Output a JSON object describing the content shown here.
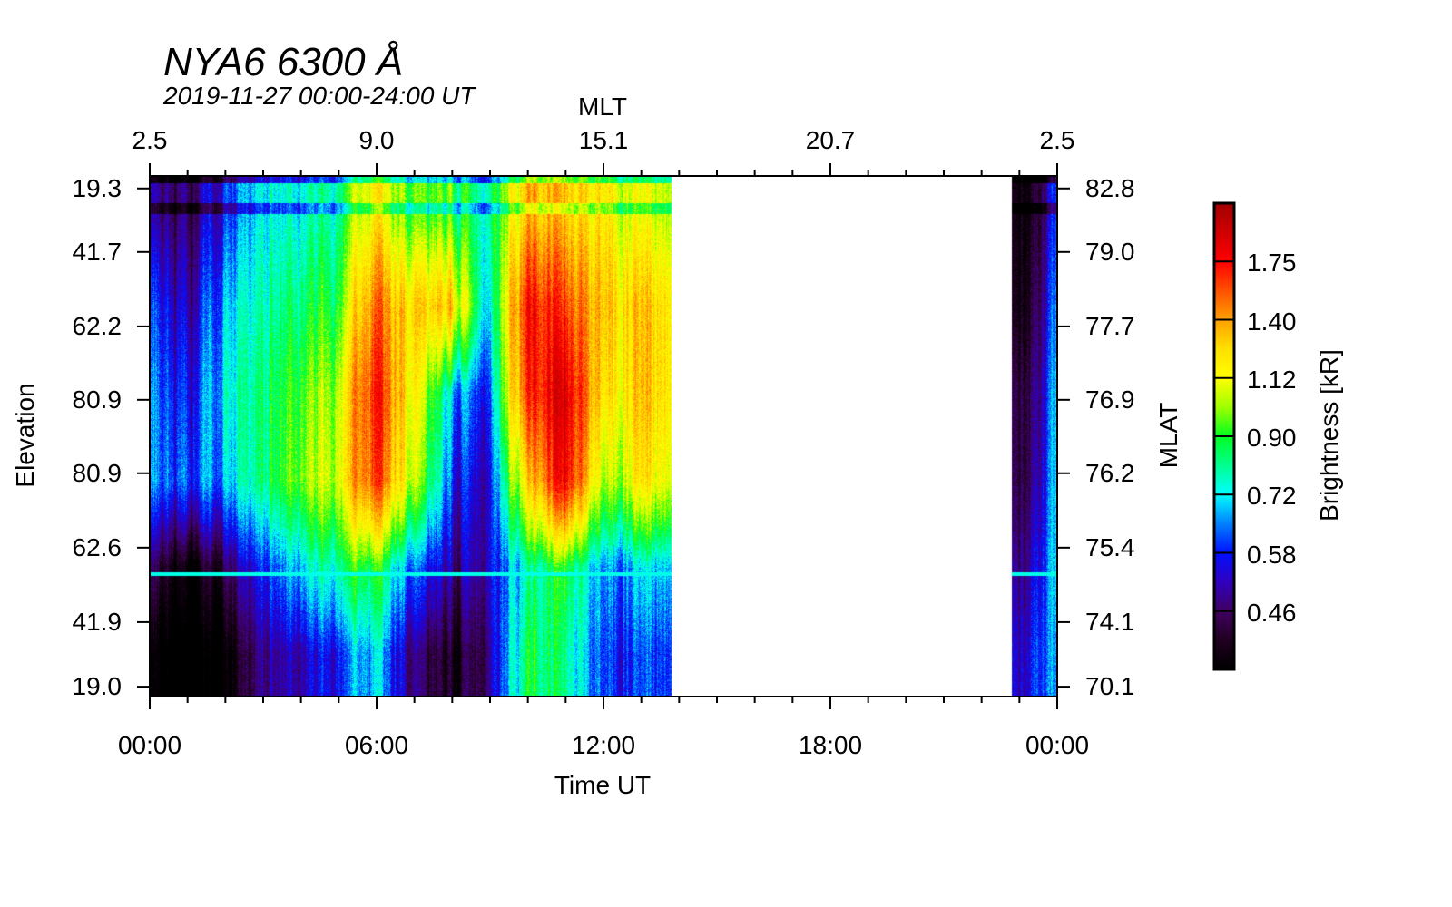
{
  "chart_data": {
    "type": "heatmap",
    "title": "NYA6 6300 Å",
    "subtitle": "2019-11-27 00:00-24:00 UT",
    "xlabel": "Time UT",
    "x_top_label": "MLT",
    "ylabel_left": "Elevation",
    "ylabel_right": "MLAT",
    "colorbar_label": "Brightness [kR]",
    "xlim_hours": [
      0,
      24
    ],
    "x_ticks": [
      "00:00",
      "06:00",
      "12:00",
      "18:00",
      "00:00"
    ],
    "mlt_ticks": [
      "2.5",
      "9.0",
      "15.1",
      "20.7",
      "2.5"
    ],
    "elevation_ticks": [
      "19.3",
      "41.7",
      "62.2",
      "80.9",
      "80.9",
      "62.6",
      "41.9",
      "19.0"
    ],
    "mlat_ticks": [
      "82.8",
      "79.0",
      "77.7",
      "76.9",
      "76.2",
      "75.4",
      "74.1",
      "70.1"
    ],
    "colorbar_ticks": [
      "1.75",
      "1.40",
      "1.12",
      "0.90",
      "0.72",
      "0.58",
      "0.46"
    ],
    "colorbar_range_kR": [
      0.36,
      2.2
    ],
    "data_intervals_hours": [
      [
        0,
        13.8
      ],
      [
        22.8,
        24
      ]
    ],
    "bands_note_order": "north-to-south elevation bands",
    "grid_hours": [
      0,
      1,
      2,
      3,
      4,
      5,
      6,
      7,
      8,
      9,
      10,
      11,
      12,
      13,
      13.8,
      22.8,
      23.5,
      24
    ],
    "brightness_kR": [
      [
        0.5,
        0.6,
        0.65,
        0.65,
        0.45,
        0.35
      ],
      [
        0.45,
        0.5,
        0.55,
        0.6,
        0.35,
        0.3
      ],
      [
        0.6,
        0.7,
        0.75,
        0.7,
        0.45,
        0.35
      ],
      [
        0.75,
        0.8,
        0.85,
        0.85,
        0.6,
        0.5
      ],
      [
        0.8,
        0.9,
        1.0,
        1.05,
        0.75,
        0.55
      ],
      [
        0.85,
        0.95,
        1.1,
        1.15,
        0.85,
        0.6
      ],
      [
        1.2,
        1.5,
        1.7,
        1.6,
        0.9,
        0.7
      ],
      [
        0.9,
        1.2,
        1.1,
        1.0,
        0.6,
        0.45
      ],
      [
        0.95,
        1.3,
        0.7,
        0.6,
        0.5,
        0.4
      ],
      [
        0.8,
        0.7,
        0.6,
        0.55,
        0.55,
        0.5
      ],
      [
        1.4,
        1.8,
        1.7,
        1.3,
        0.8,
        0.9
      ],
      [
        1.3,
        1.6,
        1.9,
        1.8,
        0.9,
        0.8
      ],
      [
        1.2,
        1.3,
        1.2,
        1.0,
        0.65,
        0.6
      ],
      [
        1.1,
        1.3,
        1.3,
        1.2,
        0.7,
        0.6
      ],
      [
        1.05,
        1.2,
        1.2,
        1.1,
        0.7,
        0.6
      ],
      [
        0.4,
        0.4,
        0.45,
        0.45,
        0.5,
        0.55
      ],
      [
        0.42,
        0.45,
        0.48,
        0.5,
        0.55,
        0.6
      ],
      [
        0.6,
        0.65,
        0.7,
        0.7,
        0.7,
        0.65
      ]
    ]
  }
}
